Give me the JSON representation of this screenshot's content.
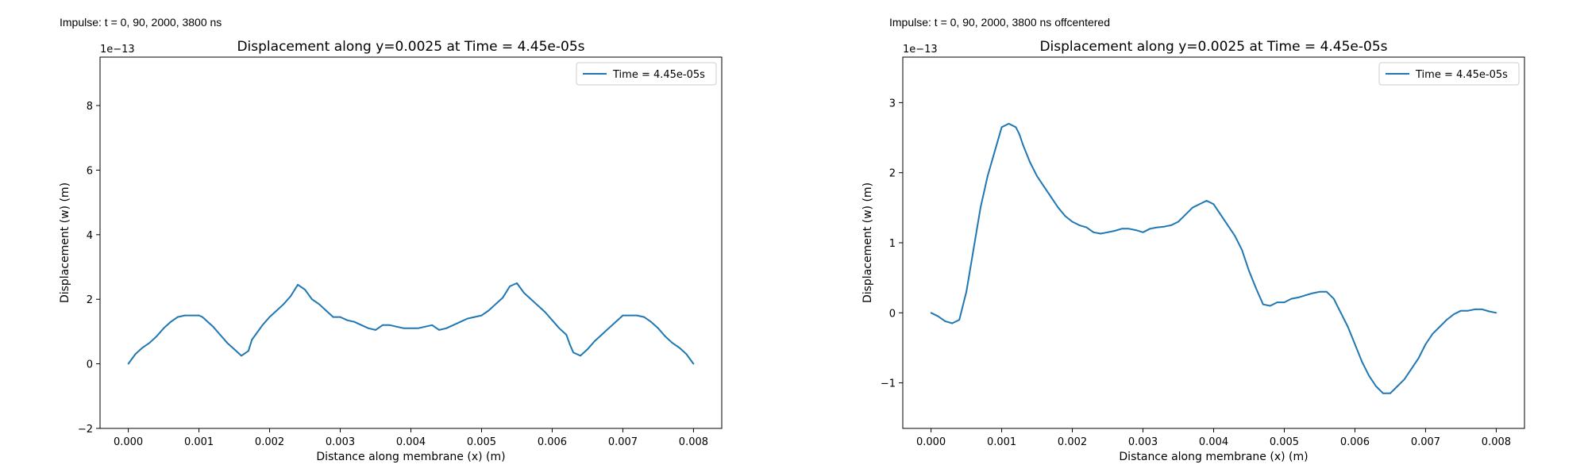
{
  "panels": [
    {
      "caption": "Impulse: t = 0, 90, 2000, 3800 ns",
      "title": "Displacement along y=0.0025 at Time = 4.45e-05s"
    },
    {
      "caption": "Impulse: t = 0, 90, 2000, 3800 ns offcentered",
      "title": "Displacement along y=0.0025 at Time = 4.45e-05s"
    }
  ],
  "colors": {
    "series": "#1f77b4",
    "axes": "#000000",
    "legend_border": "#cccccc"
  },
  "chart_data": [
    {
      "type": "line",
      "title": "Displacement along y=0.0025 at Time = 4.45e-05s",
      "xlabel": "Distance along membrane (x) (m)",
      "ylabel": "Displacement (w) (m)",
      "y_offset_label": "1e−13",
      "xlim": [
        -0.0004,
        0.0084
      ],
      "ylim": [
        -2,
        9.5
      ],
      "xticks": [
        0,
        0.001,
        0.002,
        0.003,
        0.004,
        0.005,
        0.006,
        0.007,
        0.008
      ],
      "xtick_labels": [
        "0.000",
        "0.001",
        "0.002",
        "0.003",
        "0.004",
        "0.005",
        "0.006",
        "0.007",
        "0.008"
      ],
      "yticks": [
        -2,
        0,
        2,
        4,
        6,
        8
      ],
      "ytick_labels": [
        "−2",
        "0",
        "2",
        "4",
        "6",
        "8"
      ],
      "legend_position": "upper right",
      "grid": false,
      "series": [
        {
          "name": "Time = 4.45e-05s",
          "x": [
            0.0,
            0.0001,
            0.0002,
            0.0003,
            0.0004,
            0.0005,
            0.0006,
            0.0007,
            0.0008,
            0.0009,
            0.001,
            0.00105,
            0.0011,
            0.0012,
            0.0013,
            0.0014,
            0.0015,
            0.0016,
            0.0017,
            0.00175,
            0.0018,
            0.0019,
            0.002,
            0.0021,
            0.0022,
            0.0023,
            0.0024,
            0.0025,
            0.0026,
            0.0027,
            0.0028,
            0.0029,
            0.003,
            0.0031,
            0.0032,
            0.0033,
            0.0034,
            0.0035,
            0.0036,
            0.0037,
            0.0038,
            0.0039,
            0.004,
            0.0041,
            0.0042,
            0.0043,
            0.0044,
            0.0045,
            0.0046,
            0.0047,
            0.0048,
            0.0049,
            0.005,
            0.0051,
            0.0052,
            0.0053,
            0.0054,
            0.0055,
            0.0056,
            0.0057,
            0.0058,
            0.0059,
            0.006,
            0.0061,
            0.0062,
            0.00625,
            0.0063,
            0.0064,
            0.0065,
            0.0066,
            0.0067,
            0.0068,
            0.0069,
            0.007,
            0.0071,
            0.0072,
            0.0073,
            0.0074,
            0.0075,
            0.0076,
            0.0077,
            0.0078,
            0.0079,
            0.008
          ],
          "y": [
            0.0,
            0.3,
            0.5,
            0.65,
            0.85,
            1.1,
            1.3,
            1.45,
            1.5,
            1.5,
            1.5,
            1.45,
            1.35,
            1.15,
            0.9,
            0.65,
            0.45,
            0.25,
            0.4,
            0.75,
            0.9,
            1.2,
            1.45,
            1.65,
            1.85,
            2.1,
            2.45,
            2.3,
            2.0,
            1.85,
            1.65,
            1.45,
            1.45,
            1.35,
            1.3,
            1.2,
            1.1,
            1.05,
            1.2,
            1.2,
            1.15,
            1.1,
            1.1,
            1.1,
            1.15,
            1.2,
            1.05,
            1.1,
            1.2,
            1.3,
            1.4,
            1.45,
            1.5,
            1.65,
            1.85,
            2.05,
            2.4,
            2.5,
            2.2,
            2.0,
            1.8,
            1.6,
            1.35,
            1.1,
            0.9,
            0.6,
            0.35,
            0.25,
            0.45,
            0.7,
            0.9,
            1.1,
            1.3,
            1.5,
            1.5,
            1.5,
            1.45,
            1.3,
            1.1,
            0.85,
            0.65,
            0.5,
            0.3,
            0.0
          ]
        }
      ]
    },
    {
      "type": "line",
      "title": "Displacement along y=0.0025 at Time = 4.45e-05s",
      "xlabel": "Distance along membrane (x) (m)",
      "ylabel": "Displacement (w) (m)",
      "y_offset_label": "1e−13",
      "xlim": [
        -0.0004,
        0.0084
      ],
      "ylim": [
        -1.65,
        3.65
      ],
      "xticks": [
        0,
        0.001,
        0.002,
        0.003,
        0.004,
        0.005,
        0.006,
        0.007,
        0.008
      ],
      "xtick_labels": [
        "0.000",
        "0.001",
        "0.002",
        "0.003",
        "0.004",
        "0.005",
        "0.006",
        "0.007",
        "0.008"
      ],
      "yticks": [
        -1,
        0,
        1,
        2,
        3
      ],
      "ytick_labels": [
        "−1",
        "0",
        "1",
        "2",
        "3"
      ],
      "legend_position": "upper right",
      "grid": false,
      "series": [
        {
          "name": "Time = 4.45e-05s",
          "x": [
            0.0,
            0.0001,
            0.0002,
            0.0003,
            0.0004,
            0.0005,
            0.0006,
            0.0007,
            0.0008,
            0.0009,
            0.001,
            0.0011,
            0.0012,
            0.00125,
            0.0013,
            0.0014,
            0.0015,
            0.0016,
            0.0017,
            0.0018,
            0.0019,
            0.002,
            0.0021,
            0.0022,
            0.0023,
            0.0024,
            0.0025,
            0.0026,
            0.0027,
            0.0028,
            0.0029,
            0.003,
            0.0031,
            0.0032,
            0.0033,
            0.0034,
            0.0035,
            0.0036,
            0.0037,
            0.0038,
            0.0039,
            0.004,
            0.0041,
            0.0042,
            0.0043,
            0.0044,
            0.0045,
            0.0046,
            0.0047,
            0.0048,
            0.0049,
            0.005,
            0.0051,
            0.0052,
            0.0053,
            0.0054,
            0.0055,
            0.0056,
            0.0057,
            0.0058,
            0.0059,
            0.006,
            0.0061,
            0.0062,
            0.0063,
            0.0064,
            0.0065,
            0.0066,
            0.0067,
            0.0068,
            0.0069,
            0.007,
            0.0071,
            0.0072,
            0.0073,
            0.0074,
            0.0075,
            0.0076,
            0.0077,
            0.0078,
            0.0079,
            0.008
          ],
          "y": [
            0.0,
            -0.05,
            -0.12,
            -0.15,
            -0.1,
            0.3,
            0.9,
            1.5,
            1.95,
            2.3,
            2.65,
            2.7,
            2.65,
            2.55,
            2.4,
            2.15,
            1.95,
            1.8,
            1.65,
            1.5,
            1.38,
            1.3,
            1.25,
            1.22,
            1.15,
            1.13,
            1.15,
            1.17,
            1.2,
            1.2,
            1.18,
            1.15,
            1.2,
            1.22,
            1.23,
            1.25,
            1.3,
            1.4,
            1.5,
            1.55,
            1.6,
            1.55,
            1.4,
            1.25,
            1.1,
            0.9,
            0.6,
            0.35,
            0.12,
            0.1,
            0.15,
            0.15,
            0.2,
            0.22,
            0.25,
            0.28,
            0.3,
            0.3,
            0.2,
            0.0,
            -0.2,
            -0.45,
            -0.7,
            -0.9,
            -1.05,
            -1.15,
            -1.15,
            -1.05,
            -0.95,
            -0.8,
            -0.65,
            -0.45,
            -0.3,
            -0.2,
            -0.1,
            -0.02,
            0.03,
            0.03,
            0.05,
            0.05,
            0.02,
            0.0
          ]
        }
      ]
    }
  ]
}
